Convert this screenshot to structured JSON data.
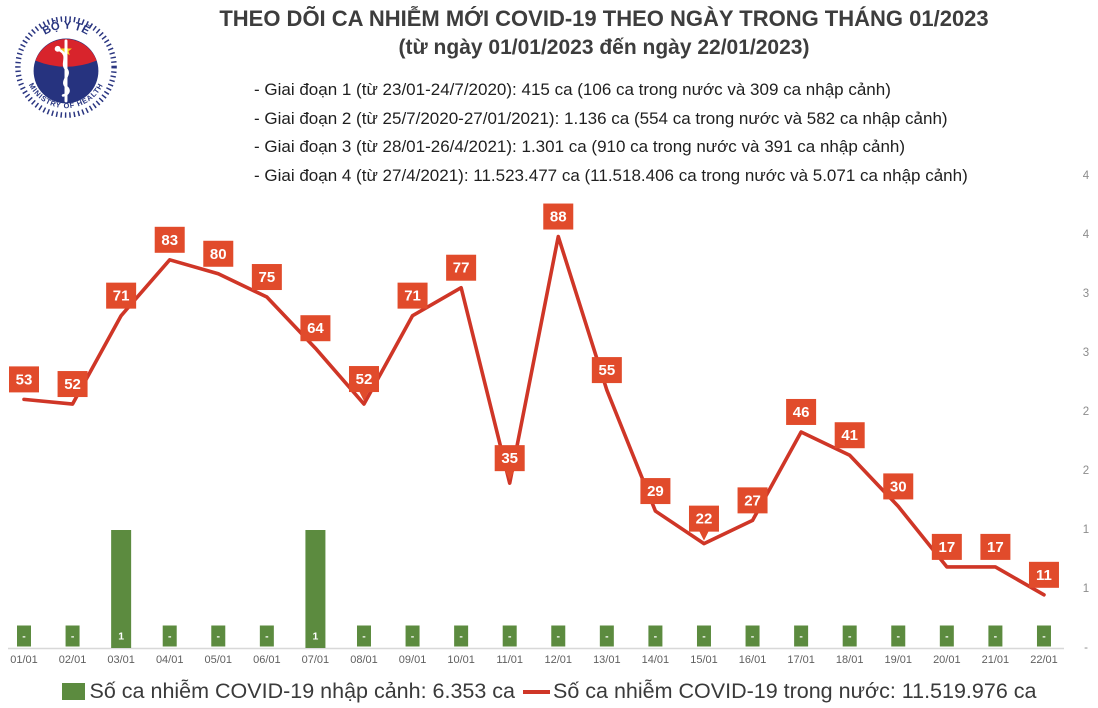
{
  "header": {
    "title": "THEO DÕI CA NHIỄM MỚI COVID-19 THEO NGÀY TRONG THÁNG 01/2023",
    "subtitle": "(từ ngày 01/01/2023 đến ngày 22/01/2023)",
    "bullets": [
      "- Giai đoạn 1 (từ 23/01-24/7/2020): 415 ca (106 ca trong nước và 309 ca nhập cảnh)",
      "- Giai đoạn 2 (từ 25/7/2020-27/01/2021): 1.136 ca (554 ca trong nước và 582 ca nhập cảnh)",
      "- Giai đoạn 3 (từ 28/01-26/4/2021): 1.301 ca (910 ca trong nước và 391 ca nhập cảnh)",
      "- Giai đoạn 4 (từ 27/4/2021): 11.523.477 ca (11.518.406 ca trong nước và 5.071 ca nhập cảnh)"
    ],
    "logo": {
      "top_text": "BỘ Y TẾ",
      "bottom_text": "MINISTRY OF HEALTH",
      "navy": "#26337f",
      "red": "#d8242c",
      "star_yellow": "#f7d51d"
    }
  },
  "chart_data": {
    "type": "combo-bar-line",
    "categories": [
      "01/01",
      "02/01",
      "03/01",
      "04/01",
      "05/01",
      "06/01",
      "07/01",
      "08/01",
      "09/01",
      "10/01",
      "11/01",
      "12/01",
      "13/01",
      "14/01",
      "15/01",
      "16/01",
      "17/01",
      "18/01",
      "19/01",
      "20/01",
      "21/01",
      "22/01"
    ],
    "series": [
      {
        "name": "Số ca nhiễm COVID-19 nhập cảnh",
        "type": "bar",
        "color": "#5c8b3f",
        "values": [
          0,
          0,
          1,
          0,
          0,
          0,
          1,
          0,
          0,
          0,
          0,
          0,
          0,
          0,
          0,
          0,
          0,
          0,
          0,
          0,
          0,
          0
        ],
        "labels": [
          "-",
          "-",
          "1",
          "-",
          "-",
          "-",
          "1",
          "-",
          "-",
          "-",
          "-",
          "-",
          "-",
          "-",
          "-",
          "-",
          "-",
          "-",
          "-",
          "-",
          "-",
          "-"
        ]
      },
      {
        "name": "Số ca nhiễm COVID-19 trong nước",
        "type": "line",
        "color": "#cf3627",
        "label_box_color": "#e14b2b",
        "values": [
          53,
          52,
          71,
          83,
          80,
          75,
          64,
          52,
          71,
          77,
          35,
          88,
          55,
          29,
          22,
          27,
          46,
          41,
          30,
          17,
          17,
          11
        ]
      }
    ],
    "callout_indexes": [
      7,
      10,
      14
    ],
    "right_axis": {
      "tick_values": [
        4,
        3.5,
        3,
        2.5,
        2,
        1.5,
        1,
        0.5,
        0
      ],
      "tick_labels": [
        "4",
        "4",
        "3",
        "3",
        "2",
        "2",
        "1",
        "1",
        "-"
      ],
      "range": [
        0,
        4
      ]
    },
    "grid": "off",
    "legend_position": "bottom"
  },
  "legend": {
    "items": [
      {
        "label": "Số ca nhiễm COVID-19 nhập cảnh: 6.353 ca",
        "color": "#5c8b3f",
        "swatch": "square"
      },
      {
        "label": "Số ca nhiễm COVID-19 trong nước: 11.519.976 ca",
        "color": "#cf3627",
        "swatch": "line"
      }
    ]
  }
}
